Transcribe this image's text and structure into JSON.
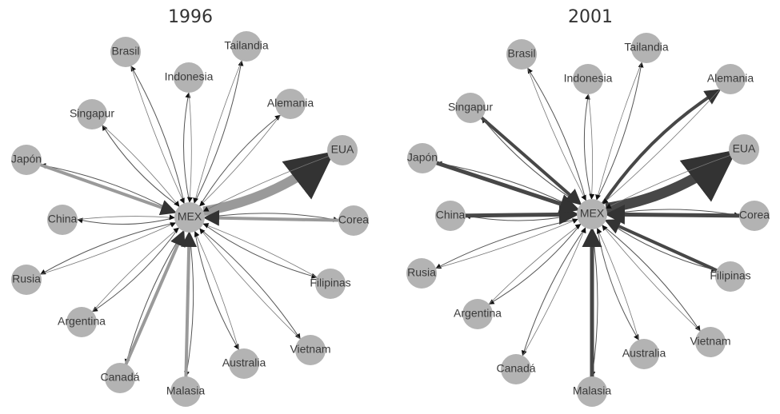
{
  "panels": [
    {
      "title": "1996",
      "nodes": [
        "MEX",
        "EUA",
        "Corea",
        "Filipinas",
        "Vietnam",
        "Australia",
        "Malasia",
        "Canadá",
        "Argentina",
        "Rusia",
        "China",
        "Japón",
        "Singapur",
        "Brasil",
        "Indonesia",
        "Tailandia",
        "Alemania"
      ]
    },
    {
      "title": "2001",
      "nodes": [
        "MEX",
        "EUA",
        "Corea",
        "Filipinas",
        "Vietnam",
        "Australia",
        "Malasia",
        "Canadá",
        "Argentina",
        "Rusia",
        "China",
        "Japón",
        "Singapur",
        "Brasil",
        "Indonesia",
        "Tailandia",
        "Alemania"
      ]
    }
  ]
}
